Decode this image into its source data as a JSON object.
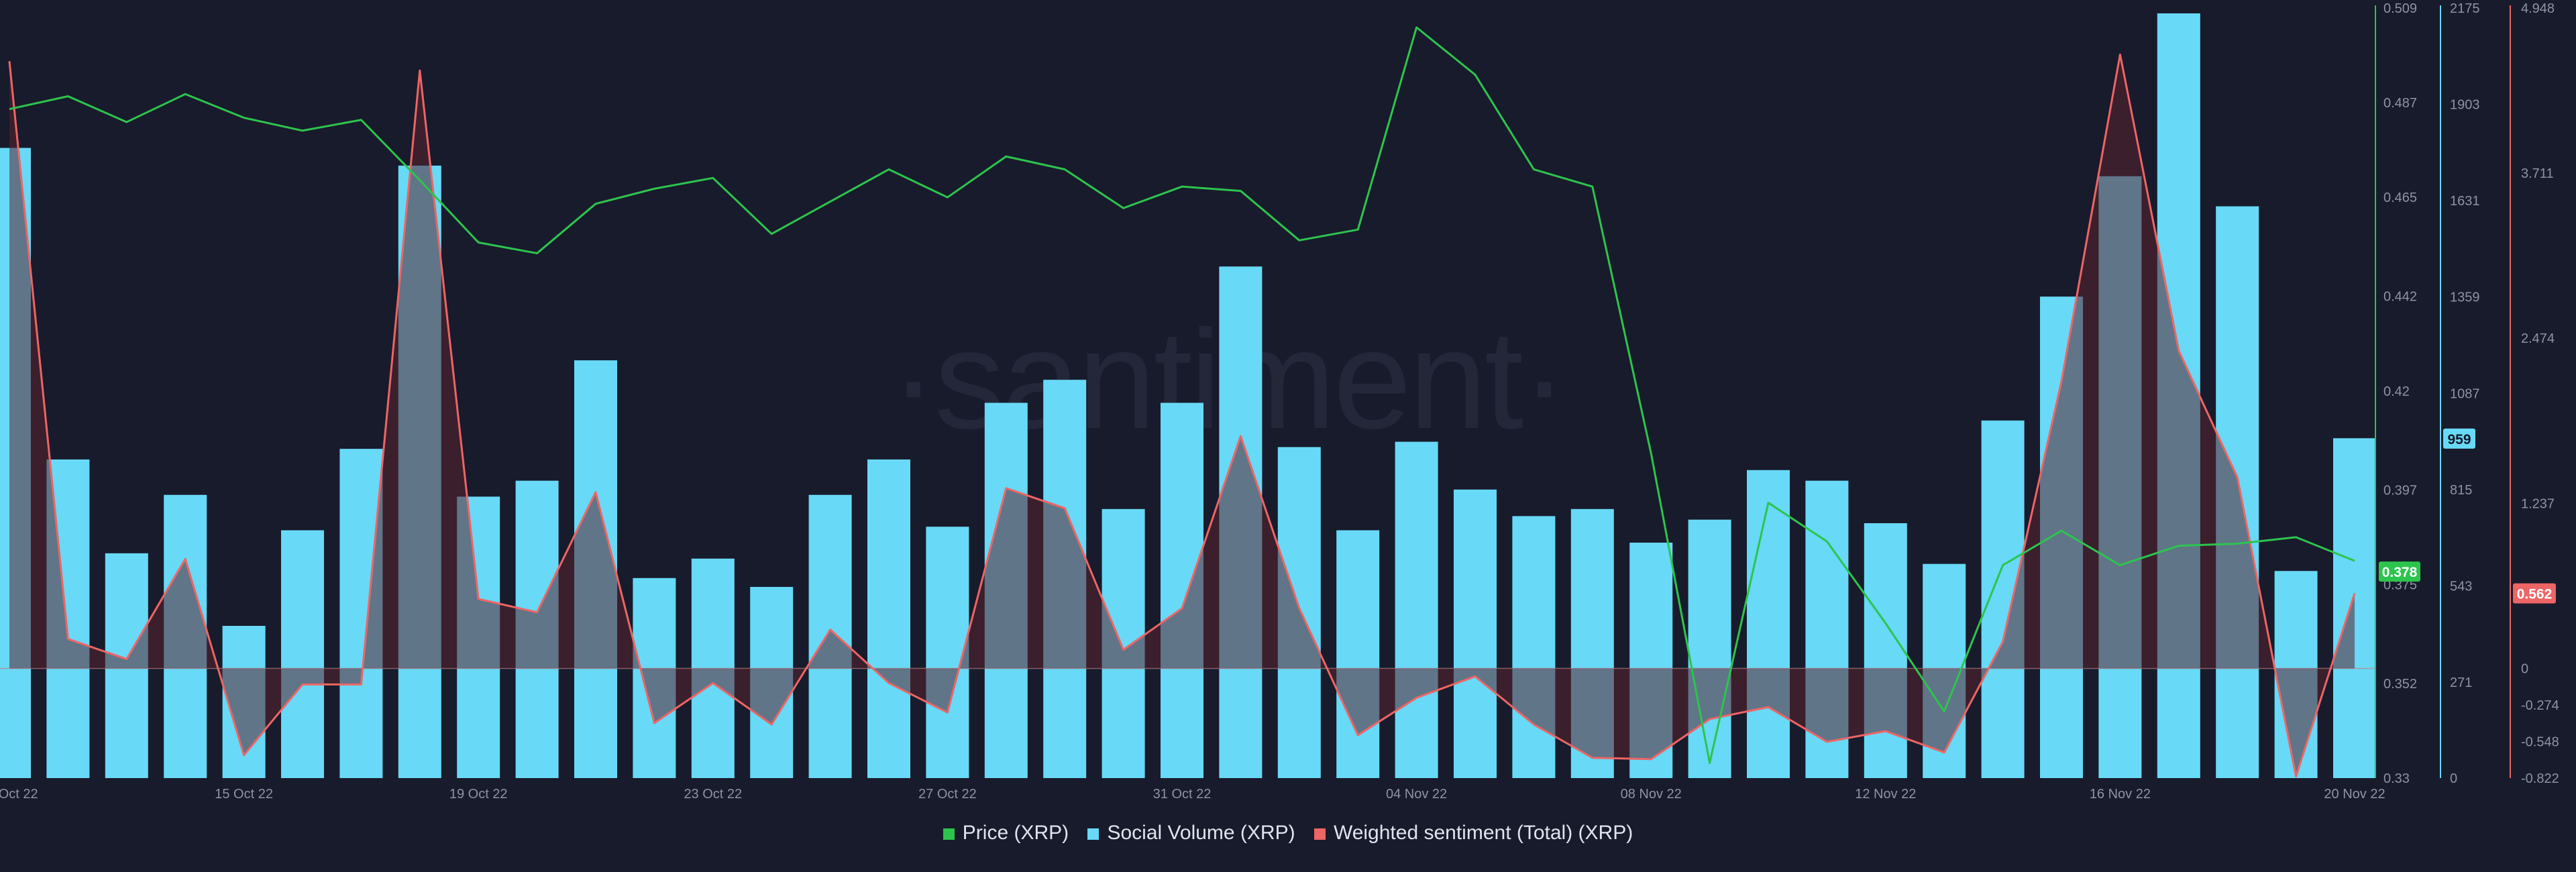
{
  "chart_data": {
    "type": "bar+line",
    "title": "",
    "watermark": "·santiment·",
    "x_dates": [
      "11 Oct 22",
      "12 Oct 22",
      "13 Oct 22",
      "14 Oct 22",
      "15 Oct 22",
      "16 Oct 22",
      "17 Oct 22",
      "18 Oct 22",
      "19 Oct 22",
      "20 Oct 22",
      "21 Oct 22",
      "22 Oct 22",
      "23 Oct 22",
      "24 Oct 22",
      "25 Oct 22",
      "26 Oct 22",
      "27 Oct 22",
      "28 Oct 22",
      "29 Oct 22",
      "30 Oct 22",
      "31 Oct 22",
      "01 Nov 22",
      "02 Nov 22",
      "03 Nov 22",
      "04 Nov 22",
      "05 Nov 22",
      "06 Nov 22",
      "07 Nov 22",
      "08 Nov 22",
      "09 Nov 22",
      "10 Nov 22",
      "11 Nov 22",
      "12 Nov 22",
      "13 Nov 22",
      "14 Nov 22",
      "15 Nov 22",
      "16 Nov 22",
      "17 Nov 22",
      "18 Nov 22",
      "19 Nov 22",
      "20 Nov 22"
    ],
    "x_tick_labels": [
      "11 Oct 22",
      "15 Oct 22",
      "19 Oct 22",
      "23 Oct 22",
      "27 Oct 22",
      "31 Oct 22",
      "04 Nov 22",
      "08 Nov 22",
      "12 Nov 22",
      "16 Nov 22",
      "20 Nov 22"
    ],
    "series": [
      {
        "name": "Social Volume (XRP)",
        "kind": "bar",
        "color": "#68d9f6",
        "axis": "social",
        "values": [
          1780,
          900,
          635,
          800,
          430,
          700,
          930,
          1730,
          795,
          840,
          1180,
          565,
          620,
          540,
          800,
          900,
          710,
          1060,
          1125,
          760,
          1060,
          1445,
          935,
          700,
          950,
          815,
          740,
          760,
          665,
          730,
          870,
          840,
          720,
          605,
          1010,
          1360,
          1700,
          2160,
          1615,
          585,
          960
        ]
      },
      {
        "name": "Price (XRP)",
        "kind": "line",
        "color": "#2dc44e",
        "axis": "price",
        "values": [
          0.4855,
          0.4885,
          0.4825,
          0.489,
          0.4835,
          0.4805,
          0.483,
          0.469,
          0.4545,
          0.452,
          0.4635,
          0.467,
          0.4695,
          0.4565,
          0.464,
          0.4715,
          0.465,
          0.4745,
          0.4715,
          0.4625,
          0.4675,
          0.4665,
          0.455,
          0.4575,
          0.5045,
          0.4935,
          0.4715,
          0.4675,
          0.4055,
          0.3335,
          0.394,
          0.385,
          0.366,
          0.3455,
          0.3795,
          0.3875,
          0.3795,
          0.384,
          0.3845,
          0.386,
          0.3805
        ]
      },
      {
        "name": "Weighted sentiment (Total) (XRP)",
        "kind": "line",
        "color": "#ed6565",
        "axis": "sentiment",
        "fill": "area",
        "values": [
          4.55,
          0.22,
          0.07,
          0.82,
          -0.65,
          -0.12,
          -0.12,
          4.48,
          0.52,
          0.42,
          1.32,
          -0.41,
          -0.11,
          -0.42,
          0.29,
          -0.11,
          -0.33,
          1.35,
          1.2,
          0.14,
          0.45,
          1.74,
          0.45,
          -0.5,
          -0.22,
          -0.06,
          -0.42,
          -0.67,
          -0.68,
          -0.38,
          -0.29,
          -0.55,
          -0.47,
          -0.63,
          0.2,
          2.15,
          4.6,
          2.38,
          1.43,
          -0.81,
          0.562
        ]
      }
    ],
    "axes": {
      "price": {
        "range": [
          0.33,
          0.509
        ],
        "color": "#2dc44e",
        "ticks": [
          "0.509",
          "0.487",
          "0.465",
          "0.442",
          "0.42",
          "0.397",
          "0.375",
          "0.352",
          "0.33"
        ],
        "tick_values": [
          0.509,
          0.487,
          0.465,
          0.442,
          0.42,
          0.397,
          0.375,
          0.352,
          0.33
        ],
        "current": "0.378",
        "current_value": 0.378
      },
      "social": {
        "range": [
          0,
          2175
        ],
        "color": "#68d9f6",
        "ticks": [
          "2175",
          "1903",
          "1631",
          "1359",
          "1087",
          "815",
          "543",
          "271",
          "0"
        ],
        "tick_values": [
          2175,
          1903,
          1631,
          1359,
          1087,
          815,
          543,
          271,
          0
        ],
        "current": "959",
        "current_value": 959
      },
      "sentiment": {
        "range": [
          -0.822,
          4.948
        ],
        "color": "#ed6565",
        "ticks": [
          "4.948",
          "3.711",
          "2.474",
          "1.237",
          "0",
          "-0.274",
          "-0.548",
          "-0.822"
        ],
        "tick_values": [
          4.948,
          3.711,
          2.474,
          1.237,
          0,
          -0.274,
          -0.548,
          -0.822
        ],
        "current": "0.562",
        "current_value": 0.562
      }
    },
    "legend": [
      {
        "label": "Price (XRP)",
        "color": "#2dc44e"
      },
      {
        "label": "Social Volume (XRP)",
        "color": "#68d9f6"
      },
      {
        "label": "Weighted sentiment (Total) (XRP)",
        "color": "#ed6565"
      }
    ]
  }
}
